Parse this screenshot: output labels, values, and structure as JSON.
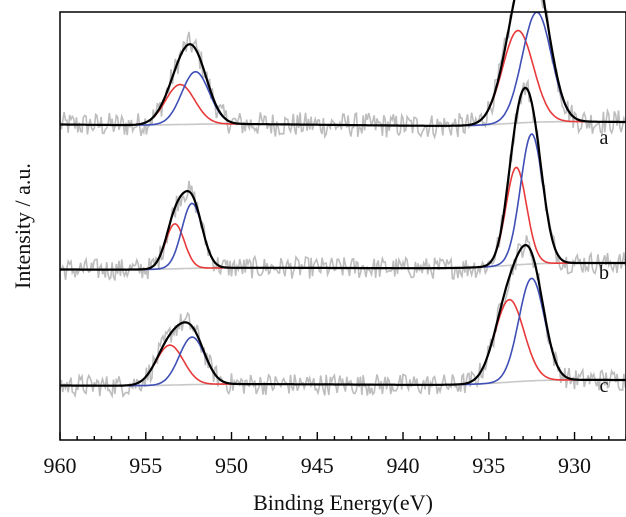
{
  "chart_data": {
    "type": "line",
    "title": "",
    "xlabel": "Binding Energy(eV)",
    "ylabel": "Intensity / a.u.",
    "xlim": [
      960,
      927
    ],
    "x_reversed": true,
    "x_ticks": [
      960,
      955,
      950,
      945,
      940,
      935,
      930
    ],
    "y_ticks_shown": false,
    "grid": false,
    "legend": "none",
    "colors": {
      "raw": "#bdbdbd",
      "envelope": "#000000",
      "component_high": "#e83a3a",
      "component_low": "#3f4fb5",
      "background": "#c8c8c8"
    },
    "spectra": [
      {
        "label": "a",
        "baseline_left": 0.6,
        "baseline_right": 0.48,
        "peaks": [
          {
            "center": 953.0,
            "height": 0.8,
            "width": 0.85,
            "component": "high"
          },
          {
            "center": 952.1,
            "height": 1.05,
            "width": 0.8,
            "component": "low"
          },
          {
            "center": 933.3,
            "height": 1.85,
            "width": 0.9,
            "component": "high"
          },
          {
            "center": 932.2,
            "height": 2.2,
            "width": 0.85,
            "component": "low"
          }
        ],
        "noise_amplitude": 0.25
      },
      {
        "label": "b",
        "baseline_left": 0.4,
        "baseline_right": 0.36,
        "peaks": [
          {
            "center": 953.3,
            "height": 0.9,
            "width": 0.55,
            "component": "high"
          },
          {
            "center": 952.3,
            "height": 1.3,
            "width": 0.6,
            "component": "low"
          },
          {
            "center": 933.4,
            "height": 1.95,
            "width": 0.6,
            "component": "high"
          },
          {
            "center": 932.5,
            "height": 2.6,
            "width": 0.65,
            "component": "low"
          }
        ],
        "noise_amplitude": 0.22
      },
      {
        "label": "c",
        "baseline_left": 0.34,
        "baseline_right": 0.28,
        "peaks": [
          {
            "center": 953.6,
            "height": 0.8,
            "width": 0.8,
            "component": "high"
          },
          {
            "center": 952.3,
            "height": 0.95,
            "width": 0.75,
            "component": "low"
          },
          {
            "center": 933.8,
            "height": 1.65,
            "width": 0.85,
            "component": "high"
          },
          {
            "center": 932.5,
            "height": 2.05,
            "width": 0.75,
            "component": "low"
          }
        ],
        "noise_amplitude": 0.22
      }
    ]
  }
}
